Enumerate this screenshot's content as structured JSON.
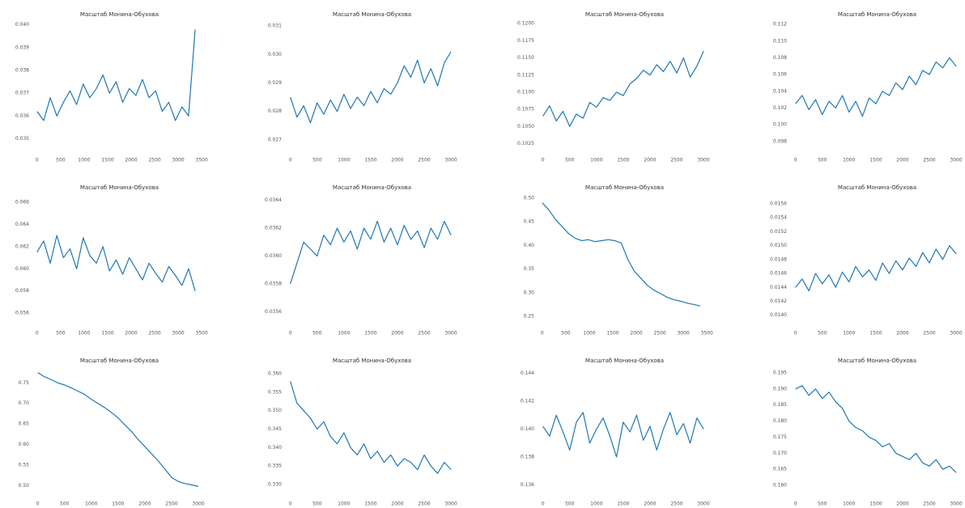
{
  "chart_data": [
    {
      "type": "line",
      "title": "Масштаб Монина-Обухова",
      "color": "#1f77b4",
      "x": [
        0,
        140,
        280,
        420,
        560,
        700,
        840,
        980,
        1120,
        1260,
        1400,
        1540,
        1680,
        1820,
        1960,
        2100,
        2240,
        2380,
        2520,
        2660,
        2800,
        2940,
        3080,
        3220,
        3360
      ],
      "values": [
        0.0362,
        0.0358,
        0.0368,
        0.036,
        0.0366,
        0.0371,
        0.0365,
        0.0374,
        0.0368,
        0.0372,
        0.0378,
        0.037,
        0.0375,
        0.0366,
        0.0372,
        0.0369,
        0.0376,
        0.0368,
        0.0371,
        0.0362,
        0.0366,
        0.0358,
        0.0364,
        0.036,
        0.0398
      ],
      "xlim": [
        -100,
        3600
      ],
      "xticks": [
        0,
        500,
        1000,
        1500,
        2000,
        2500,
        3000,
        3500
      ],
      "ylim": [
        0.0347,
        0.0402
      ],
      "yticks": [
        0.035,
        0.036,
        0.037,
        0.038,
        0.039,
        {
          "value": 0.04,
          "label": "0.040"
        }
      ]
    },
    {
      "type": "line",
      "title": "Масштаб Монина-Обухова",
      "color": "#1f77b4",
      "x": [
        0,
        125,
        250,
        375,
        500,
        625,
        750,
        875,
        1000,
        1125,
        1250,
        1375,
        1500,
        1625,
        1750,
        1875,
        2000,
        2125,
        2250,
        2375,
        2500,
        2625,
        2750,
        2875,
        3000
      ],
      "values": [
        0.0285,
        0.0278,
        0.0282,
        0.0276,
        0.0283,
        0.0279,
        0.0284,
        0.028,
        0.0286,
        0.0281,
        0.0285,
        0.0282,
        0.0287,
        0.0283,
        0.0288,
        0.0286,
        0.029,
        0.0296,
        0.0292,
        0.0298,
        0.029,
        0.0295,
        0.0289,
        0.0297,
        0.0301
      ],
      "xlim": [
        -100,
        3150
      ],
      "xticks": [
        0,
        500,
        1000,
        1500,
        2000,
        2500,
        3000
      ],
      "ylim": [
        0.0268,
        0.0312
      ],
      "yticks": [
        0.027,
        0.028,
        0.029,
        {
          "value": 0.03,
          "label": "0.030"
        },
        0.031
      ]
    },
    {
      "type": "line",
      "title": "Масштаб Монина-Обухова",
      "color": "#1f77b4",
      "x": [
        0,
        125,
        250,
        375,
        500,
        625,
        750,
        875,
        1000,
        1125,
        1250,
        1375,
        1500,
        1625,
        1750,
        1875,
        2000,
        2125,
        2250,
        2375,
        2500,
        2625,
        2750,
        2875,
        3000
      ],
      "values": [
        0.1065,
        0.108,
        0.1058,
        0.1072,
        0.105,
        0.1068,
        0.1062,
        0.1085,
        0.1078,
        0.1092,
        0.1088,
        0.11,
        0.1095,
        0.1112,
        0.112,
        0.1132,
        0.1125,
        0.114,
        0.113,
        0.1145,
        0.1128,
        0.115,
        0.1122,
        0.1138,
        0.116
      ],
      "xlim": [
        -100,
        3150
      ],
      "xticks": [
        0,
        500,
        1000,
        1500,
        2000,
        2500,
        3000
      ],
      "ylim": [
        0.1022,
        0.1205
      ],
      "yticks": [
        0.1025,
        {
          "value": 0.105,
          "label": "0.1050"
        },
        0.1075,
        {
          "value": 0.11,
          "label": "0.1100"
        },
        0.1125,
        {
          "value": 0.115,
          "label": "0.1150"
        },
        0.1175,
        {
          "value": 0.12,
          "label": "0.1200"
        }
      ]
    },
    {
      "type": "line",
      "title": "Масштаб Монина-Обухова",
      "color": "#1f77b4",
      "x": [
        0,
        125,
        250,
        375,
        500,
        625,
        750,
        875,
        1000,
        1125,
        1250,
        1375,
        1500,
        1625,
        1750,
        1875,
        2000,
        2125,
        2250,
        2375,
        2500,
        2625,
        2750,
        2875,
        3000
      ],
      "values": [
        0.1025,
        0.1035,
        0.1018,
        0.103,
        0.1012,
        0.1028,
        0.102,
        0.1035,
        0.1015,
        0.1028,
        0.101,
        0.1032,
        0.1025,
        0.104,
        0.1035,
        0.105,
        0.1042,
        0.1058,
        0.1048,
        0.1065,
        0.106,
        0.1075,
        0.1068,
        0.108,
        0.107
      ],
      "xlim": [
        -100,
        3150
      ],
      "xticks": [
        0,
        500,
        1000,
        1500,
        2000,
        2500,
        3000
      ],
      "ylim": [
        0.0975,
        0.1125
      ],
      "yticks": [
        0.098,
        {
          "value": 0.1,
          "label": "0.100"
        },
        0.102,
        0.104,
        0.106,
        0.108,
        {
          "value": 0.11,
          "label": "0.110"
        },
        0.112
      ]
    },
    {
      "type": "line",
      "title": "Масштаб Монина-Обухова",
      "color": "#1f77b4",
      "x": [
        0,
        140,
        280,
        420,
        560,
        700,
        840,
        980,
        1120,
        1260,
        1400,
        1540,
        1680,
        1820,
        1960,
        2100,
        2240,
        2380,
        2520,
        2660,
        2800,
        2940,
        3080,
        3220,
        3360
      ],
      "values": [
        0.0615,
        0.0625,
        0.0605,
        0.063,
        0.061,
        0.0618,
        0.06,
        0.0628,
        0.0612,
        0.0605,
        0.062,
        0.0598,
        0.0608,
        0.0595,
        0.061,
        0.06,
        0.059,
        0.0605,
        0.0596,
        0.0588,
        0.0602,
        0.0594,
        0.0585,
        0.06,
        0.058
      ],
      "xlim": [
        -100,
        3600
      ],
      "xticks": [
        0,
        500,
        1000,
        1500,
        2000,
        2500,
        3000,
        3500
      ],
      "ylim": [
        0.0555,
        0.0668
      ],
      "yticks": [
        0.056,
        0.058,
        {
          "value": 0.06,
          "label": "0.060"
        },
        0.062,
        0.064,
        0.066
      ]
    },
    {
      "type": "line",
      "title": "Масштаб Монина-Обухова",
      "color": "#1f77b4",
      "x": [
        0,
        125,
        250,
        375,
        500,
        625,
        750,
        875,
        1000,
        1125,
        1250,
        1375,
        1500,
        1625,
        1750,
        1875,
        2000,
        2125,
        2250,
        2375,
        2500,
        2625,
        2750,
        2875,
        3000
      ],
      "values": [
        0.0358,
        0.03595,
        0.0361,
        0.03605,
        0.036,
        0.03615,
        0.03608,
        0.0362,
        0.0361,
        0.03618,
        0.03605,
        0.0362,
        0.03612,
        0.03625,
        0.0361,
        0.0362,
        0.03608,
        0.03622,
        0.03612,
        0.03618,
        0.03606,
        0.0362,
        0.03612,
        0.03625,
        0.03615
      ],
      "xlim": [
        -100,
        3150
      ],
      "xticks": [
        0,
        500,
        1000,
        1500,
        2000,
        2500,
        3000
      ],
      "ylim": [
        0.03555,
        0.03645
      ],
      "yticks": [
        0.0356,
        0.0358,
        {
          "value": 0.036,
          "label": "0.0360"
        },
        0.0362,
        0.0364
      ]
    },
    {
      "type": "line",
      "title": "Масштаб Монина-Обухова",
      "color": "#1f77b4",
      "x": [
        0,
        140,
        280,
        420,
        560,
        700,
        840,
        980,
        1120,
        1260,
        1400,
        1540,
        1680,
        1820,
        1960,
        2100,
        2240,
        2380,
        2520,
        2660,
        2800,
        2940,
        3080,
        3220,
        3360
      ],
      "values": [
        0.49,
        0.475,
        0.455,
        0.44,
        0.425,
        0.415,
        0.41,
        0.412,
        0.408,
        0.41,
        0.412,
        0.41,
        0.405,
        0.37,
        0.345,
        0.33,
        0.315,
        0.305,
        0.298,
        0.29,
        0.285,
        0.282,
        0.278,
        0.275,
        0.272
      ],
      "xlim": [
        -100,
        3600
      ],
      "xticks": [
        0,
        500,
        1000,
        1500,
        2000,
        2500,
        3000,
        3500
      ],
      "ylim": [
        0.245,
        0.51
      ],
      "yticks": [
        0.25,
        {
          "value": 0.3,
          "label": "0.30"
        },
        0.35,
        {
          "value": 0.4,
          "label": "0.40"
        },
        0.45,
        {
          "value": 0.5,
          "label": "0.50"
        }
      ]
    },
    {
      "type": "line",
      "title": "Масштаб Монина-Обухова",
      "color": "#1f77b4",
      "x": [
        0,
        125,
        250,
        375,
        500,
        625,
        750,
        875,
        1000,
        1125,
        1250,
        1375,
        1500,
        1625,
        1750,
        1875,
        2000,
        2125,
        2250,
        2375,
        2500,
        2625,
        2750,
        2875,
        3000
      ],
      "values": [
        0.0144,
        0.01452,
        0.01435,
        0.0146,
        0.01445,
        0.01458,
        0.0144,
        0.01462,
        0.01448,
        0.0147,
        0.01455,
        0.01465,
        0.0145,
        0.01475,
        0.0146,
        0.01478,
        0.01465,
        0.01482,
        0.0147,
        0.0149,
        0.01475,
        0.01495,
        0.0148,
        0.015,
        0.01488
      ],
      "xlim": [
        -100,
        3150
      ],
      "xticks": [
        0,
        500,
        1000,
        1500,
        2000,
        2500,
        3000
      ],
      "ylim": [
        0.01395,
        0.01575
      ],
      "yticks": [
        {
          "value": 0.014,
          "label": "0.0140"
        },
        0.0142,
        0.0144,
        0.0146,
        0.0148,
        {
          "value": 0.015,
          "label": "0.0150"
        },
        0.0152,
        0.0154,
        0.0156
      ]
    },
    {
      "type": "line",
      "title": "Масштаб Монина-Обухова",
      "color": "#1f77b4",
      "x": [
        0,
        125,
        250,
        375,
        500,
        625,
        750,
        875,
        1000,
        1125,
        1250,
        1375,
        1500,
        1625,
        1750,
        1875,
        2000,
        2125,
        2250,
        2375,
        2500,
        2625,
        2750,
        2875,
        3000
      ],
      "values": [
        0.775,
        0.765,
        0.758,
        0.75,
        0.745,
        0.738,
        0.73,
        0.722,
        0.71,
        0.7,
        0.69,
        0.678,
        0.665,
        0.648,
        0.632,
        0.612,
        0.595,
        0.578,
        0.56,
        0.54,
        0.52,
        0.51,
        0.505,
        0.502,
        0.498
      ],
      "xlim": [
        -100,
        3150
      ],
      "xticks": [
        0,
        500,
        1000,
        1500,
        2000,
        2500,
        3000
      ],
      "ylim": [
        0.485,
        0.79
      ],
      "yticks": [
        {
          "value": 0.5,
          "label": "0.50"
        },
        0.55,
        {
          "value": 0.6,
          "label": "0.60"
        },
        0.65,
        {
          "value": 0.7,
          "label": "0.70"
        },
        0.75
      ]
    },
    {
      "type": "line",
      "title": "Масштаб Монина-Обухова",
      "color": "#1f77b4",
      "x": [
        0,
        125,
        250,
        375,
        500,
        625,
        750,
        875,
        1000,
        1125,
        1250,
        1375,
        1500,
        1625,
        1750,
        1875,
        2000,
        2125,
        2250,
        2375,
        2500,
        2625,
        2750,
        2875,
        3000
      ],
      "values": [
        0.358,
        0.352,
        0.35,
        0.348,
        0.345,
        0.347,
        0.343,
        0.341,
        0.344,
        0.34,
        0.338,
        0.341,
        0.337,
        0.339,
        0.336,
        0.338,
        0.335,
        0.337,
        0.336,
        0.334,
        0.338,
        0.335,
        0.333,
        0.336,
        0.334
      ],
      "xlim": [
        -100,
        3150
      ],
      "xticks": [
        0,
        500,
        1000,
        1500,
        2000,
        2500,
        3000
      ],
      "ylim": [
        0.328,
        0.362
      ],
      "yticks": [
        {
          "value": 0.33,
          "label": "0.330"
        },
        0.335,
        {
          "value": 0.34,
          "label": "0.340"
        },
        0.345,
        {
          "value": 0.35,
          "label": "0.350"
        },
        0.355,
        {
          "value": 0.36,
          "label": "0.360"
        }
      ]
    },
    {
      "type": "line",
      "title": "Масштаб Монина-Обухова",
      "color": "#1f77b4",
      "x": [
        0,
        125,
        250,
        375,
        500,
        625,
        750,
        875,
        1000,
        1125,
        1250,
        1375,
        1500,
        1625,
        1750,
        1875,
        2000,
        2125,
        2250,
        2375,
        2500,
        2625,
        2750,
        2875,
        3000
      ],
      "values": [
        0.1402,
        0.1395,
        0.141,
        0.1398,
        0.1385,
        0.1405,
        0.1412,
        0.139,
        0.14,
        0.1408,
        0.1395,
        0.138,
        0.1405,
        0.1398,
        0.141,
        0.1392,
        0.1402,
        0.1385,
        0.14,
        0.1412,
        0.1396,
        0.1404,
        0.139,
        0.1408,
        0.14
      ],
      "xlim": [
        -100,
        3150
      ],
      "xticks": [
        0,
        500,
        1000,
        1500,
        2000,
        2500,
        3000
      ],
      "ylim": [
        0.1355,
        0.1445
      ],
      "yticks": [
        0.136,
        0.138,
        {
          "value": 0.14,
          "label": "0.140"
        },
        0.142,
        0.144
      ]
    },
    {
      "type": "line",
      "title": "Масштаб Монина-Обухова",
      "color": "#1f77b4",
      "x": [
        0,
        125,
        250,
        375,
        500,
        625,
        750,
        875,
        1000,
        1125,
        1250,
        1375,
        1500,
        1625,
        1750,
        1875,
        2000,
        2125,
        2250,
        2375,
        2500,
        2625,
        2750,
        2875,
        3000
      ],
      "values": [
        0.19,
        0.191,
        0.188,
        0.19,
        0.187,
        0.189,
        0.186,
        0.184,
        0.18,
        0.178,
        0.177,
        0.175,
        0.174,
        0.172,
        0.173,
        0.17,
        0.169,
        0.168,
        0.17,
        0.167,
        0.166,
        0.168,
        0.165,
        0.166,
        0.164
      ],
      "xlim": [
        -100,
        3150
      ],
      "xticks": [
        0,
        500,
        1000,
        1500,
        2000,
        2500,
        3000
      ],
      "ylim": [
        0.158,
        0.197
      ],
      "yticks": [
        {
          "value": 0.16,
          "label": "0.160"
        },
        0.165,
        {
          "value": 0.17,
          "label": "0.170"
        },
        0.175,
        {
          "value": 0.18,
          "label": "0.180"
        },
        0.185,
        {
          "value": 0.19,
          "label": "0.190"
        },
        0.195
      ]
    }
  ]
}
